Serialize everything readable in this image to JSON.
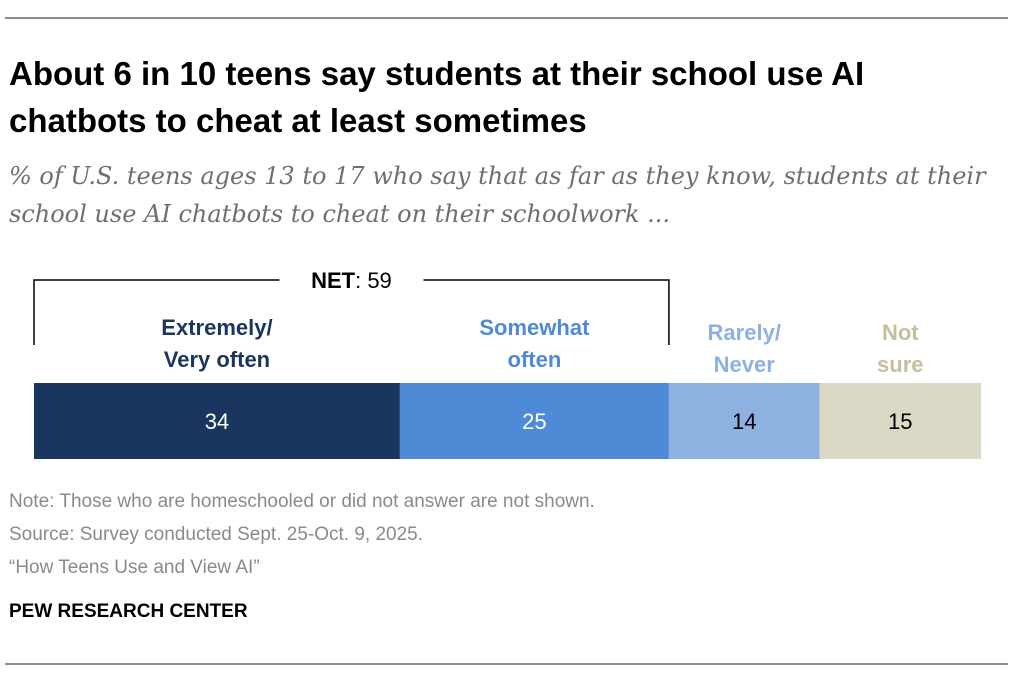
{
  "title": "About 6 in 10 teens say students at their school use AI chatbots to cheat at least sometimes",
  "subtitle": "% of U.S. teens ages 13 to 17 who say that as far as they know, students at their school use AI chatbots to cheat on their schoolwork ...",
  "notes": {
    "note": "Note: Those who are homeschooled or did not answer are not shown.",
    "source": "Source: Survey conducted Sept. 25-Oct. 9, 2025.",
    "report": "“How Teens Use and View AI”"
  },
  "brand": "PEW RESEARCH CENTER",
  "chart_data": {
    "type": "bar",
    "orientation": "horizontal",
    "stacked": true,
    "net": {
      "label": "NET",
      "value": 59,
      "covers": [
        "Extremely/ Very often",
        "Somewhat often"
      ]
    },
    "series": [
      {
        "name": "Extremely/ Very often",
        "label_lines": [
          "Extremely/",
          "Very often"
        ],
        "value": 34,
        "color": "#1a355e",
        "label_color": "#1a355e",
        "value_color": "#ffffff"
      },
      {
        "name": "Somewhat often",
        "label_lines": [
          "Somewhat",
          "often"
        ],
        "value": 25,
        "color": "#4f8ad6",
        "label_color": "#4f8ad6",
        "value_color": "#ffffff"
      },
      {
        "name": "Rarely/ Never",
        "label_lines": [
          "Rarely/",
          "Never"
        ],
        "value": 14,
        "color": "#8db2e2",
        "label_color": "#8db2e2",
        "value_color": "#000000"
      },
      {
        "name": "Not sure",
        "label_lines": [
          "Not",
          "sure"
        ],
        "value": 15,
        "color": "#dcd8c6",
        "label_color": "#c5bf9f",
        "value_color": "#000000"
      }
    ]
  }
}
